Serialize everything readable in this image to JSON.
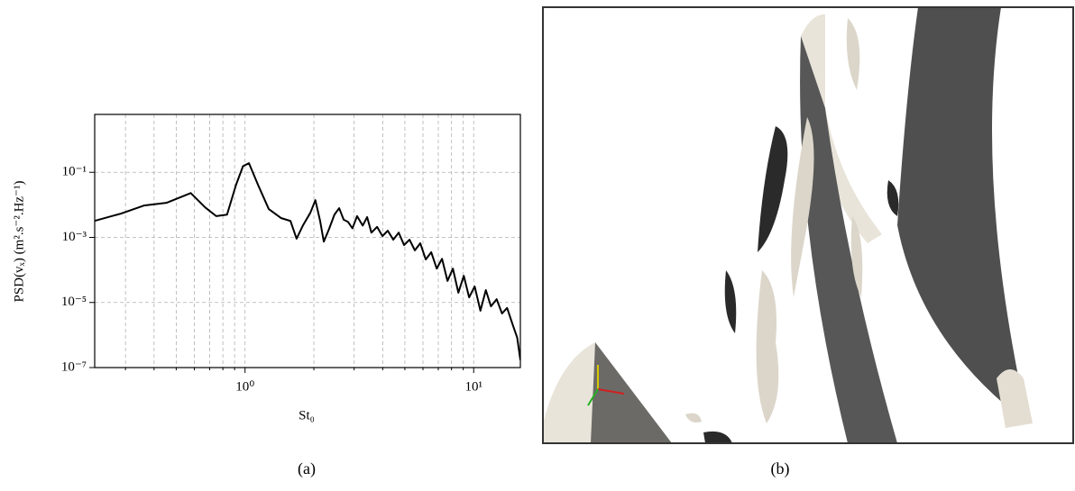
{
  "chart_data": {
    "type": "line",
    "xlabel": "St₀",
    "ylabel": "PSD(vₓ) (m².s⁻².Hz⁻¹)",
    "xscale": "log",
    "yscale": "log",
    "xlim": [
      0.22,
      16
    ],
    "ylim": [
      1e-07,
      6
    ],
    "xticks": [
      {
        "value": 1,
        "label": "10⁰"
      },
      {
        "value": 10,
        "label": "10¹"
      }
    ],
    "xminor": [
      0.3,
      0.4,
      0.5,
      0.6,
      0.7,
      0.8,
      0.9,
      2,
      3,
      4,
      5,
      6,
      7,
      8,
      9
    ],
    "yticks": [
      {
        "value": 1e-07,
        "label": "10⁻⁷"
      },
      {
        "value": 1e-05,
        "label": "10⁻⁵"
      },
      {
        "value": 0.001,
        "label": "10⁻³"
      },
      {
        "value": 0.1,
        "label": "10⁻¹"
      }
    ],
    "grid": true,
    "color": "#000000",
    "x": [
      0.219,
      0.287,
      0.361,
      0.453,
      0.579,
      0.67,
      0.748,
      0.834,
      0.913,
      0.98,
      1.04,
      1.14,
      1.27,
      1.44,
      1.58,
      1.68,
      1.79,
      1.93,
      2.03,
      2.13,
      2.21,
      2.33,
      2.46,
      2.58,
      2.7,
      2.82,
      2.95,
      3.09,
      3.27,
      3.42,
      3.57,
      3.78,
      3.99,
      4.21,
      4.45,
      4.7,
      4.96,
      5.24,
      5.53,
      5.84,
      6.17,
      6.52,
      6.89,
      7.27,
      7.68,
      8.11,
      8.57,
      9.05,
      9.55,
      10.1,
      10.7,
      11.3,
      11.9,
      12.6,
      13.3,
      14.0,
      14.8,
      15.5,
      16.0
    ],
    "values": [
      0.0032,
      0.0054,
      0.0095,
      0.0115,
      0.023,
      0.0083,
      0.0045,
      0.005,
      0.041,
      0.155,
      0.19,
      0.041,
      0.0074,
      0.0039,
      0.0032,
      0.00091,
      0.0023,
      0.0057,
      0.0139,
      0.0032,
      0.00074,
      0.0018,
      0.005,
      0.0079,
      0.0035,
      0.003,
      0.0019,
      0.0045,
      0.0023,
      0.0042,
      0.0014,
      0.0021,
      0.0011,
      0.0016,
      0.00085,
      0.0014,
      0.00058,
      0.00085,
      0.0004,
      0.00066,
      0.00021,
      0.00035,
      0.00011,
      0.00022,
      4.6e-05,
      0.00011,
      2e-05,
      6.6e-05,
      1.44e-05,
      3.1e-05,
      5.6e-06,
      2.4e-05,
      7.6e-06,
      1.26e-05,
      4.6e-06,
      6.8e-06,
      2.1e-06,
      8.3e-07,
      1.7e-07
    ]
  },
  "captions": [
    "(a)",
    "(b)"
  ]
}
